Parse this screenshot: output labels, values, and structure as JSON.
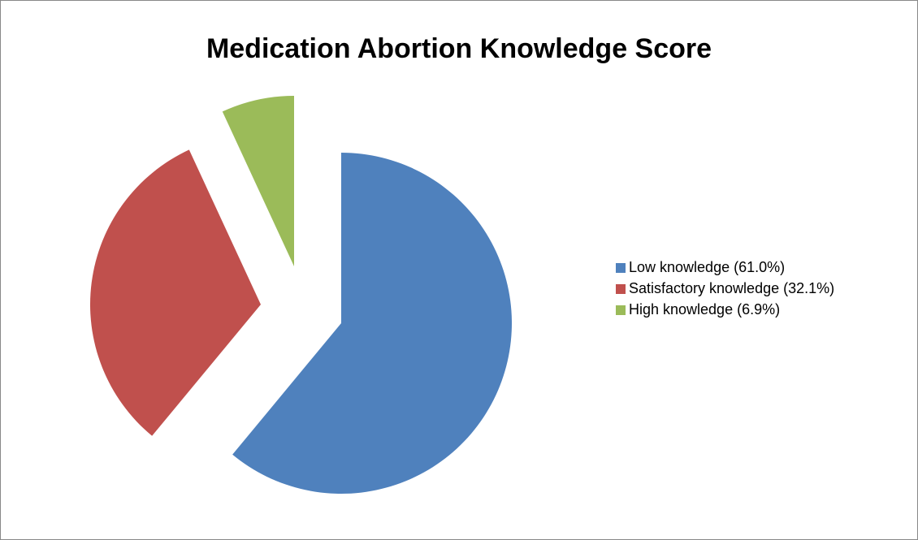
{
  "chart_data": {
    "type": "pie",
    "title": "Medication Abortion Knowledge Score",
    "categories": [
      "Low knowledge (61.0%)",
      "Satisfactory knowledge (32.1%)",
      "High knowledge (6.9%)"
    ],
    "values": [
      61.0,
      32.1,
      6.9
    ],
    "colors": [
      "#4f81bd",
      "#c0504d",
      "#9bbb59"
    ],
    "legend": "right"
  }
}
